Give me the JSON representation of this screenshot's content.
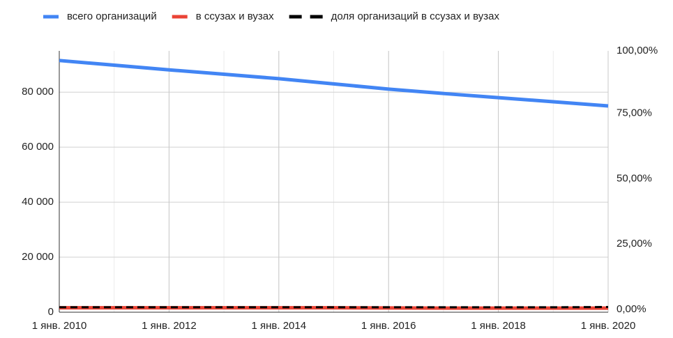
{
  "chart_data": {
    "type": "line",
    "x": [
      2010,
      2011,
      2012,
      2013,
      2014,
      2015,
      2016,
      2017,
      2018,
      2019,
      2020
    ],
    "xlim": [
      2010,
      2020
    ],
    "xticks": [
      {
        "value": 2010,
        "label": "1 янв. 2010"
      },
      {
        "value": 2012,
        "label": "1 янв. 2012"
      },
      {
        "value": 2014,
        "label": "1 янв. 2014"
      },
      {
        "value": 2016,
        "label": "1 янв. 2016"
      },
      {
        "value": 2018,
        "label": "1 янв. 2018"
      },
      {
        "value": 2020,
        "label": "1 янв. 2020"
      }
    ],
    "ylim": [
      0,
      95000
    ],
    "yticks": [
      0,
      {
        "value": 20000,
        "label": "20 000"
      },
      {
        "value": 40000,
        "label": "40 000"
      },
      {
        "value": 60000,
        "label": "60 000"
      },
      {
        "value": 80000,
        "label": "80 000"
      }
    ],
    "y2lim": [
      0,
      100
    ],
    "y2ticks": [
      {
        "value": 0,
        "label": "0,00%"
      },
      {
        "value": 25,
        "label": "25,00%"
      },
      {
        "value": 50,
        "label": "50,00%"
      },
      {
        "value": 75,
        "label": "75,00%"
      },
      {
        "value": 100,
        "label": "100,00%"
      }
    ],
    "grid": true,
    "legend": "top",
    "series": [
      {
        "name": "всего организаций",
        "color": "#4285f4",
        "values": [
          91500,
          89800,
          88100,
          86500,
          84900,
          83000,
          81100,
          79500,
          78000,
          76500,
          75000
        ]
      },
      {
        "name": "в ссузах и вузах",
        "color": "#ea4335",
        "values": [
          1600,
          1600,
          1600,
          1600,
          1600,
          1600,
          1550,
          1500,
          1500,
          1500,
          1500
        ]
      },
      {
        "name": "доля организаций в ссузах и вузах",
        "color": "#000000",
        "axis": "y2",
        "line_style": "dashed",
        "values": [
          1.9,
          1.9,
          1.9,
          1.9,
          1.9,
          1.9,
          1.9,
          1.9,
          1.9,
          1.9,
          2.0
        ]
      }
    ]
  }
}
